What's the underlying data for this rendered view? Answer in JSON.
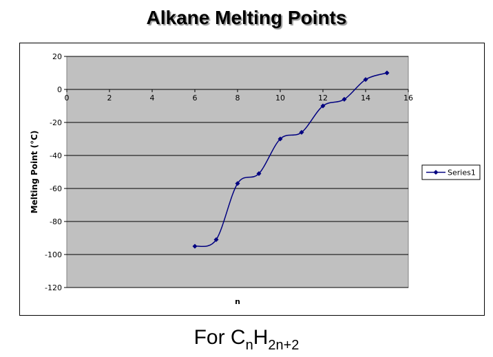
{
  "title": "Alkane Melting Points",
  "caption": {
    "prefix": "For C",
    "sub1": "n",
    "mid": "H",
    "sub2": "2n+2"
  },
  "colors": {
    "plot_bg": "#c0c0c0",
    "series": "#000080",
    "grid": "#000000"
  },
  "chart_data": {
    "type": "line",
    "smooth": true,
    "title": "Alkane Melting Points",
    "xlabel": "n",
    "ylabel": "Melting Point (°C)",
    "xlim": [
      0,
      16
    ],
    "ylim": [
      -120,
      20
    ],
    "xticks": [
      0,
      2,
      4,
      6,
      8,
      10,
      12,
      14,
      16
    ],
    "yticks": [
      20,
      0,
      -20,
      -40,
      -60,
      -80,
      -100,
      -120
    ],
    "grid": true,
    "legend_position": "right",
    "marker": "diamond",
    "series": [
      {
        "name": "Series1",
        "x": [
          6,
          7,
          8,
          9,
          10,
          11,
          12,
          13,
          14,
          15
        ],
        "y": [
          -95,
          -91,
          -57,
          -51,
          -30,
          -26,
          -10,
          -6,
          6,
          10
        ]
      }
    ]
  }
}
